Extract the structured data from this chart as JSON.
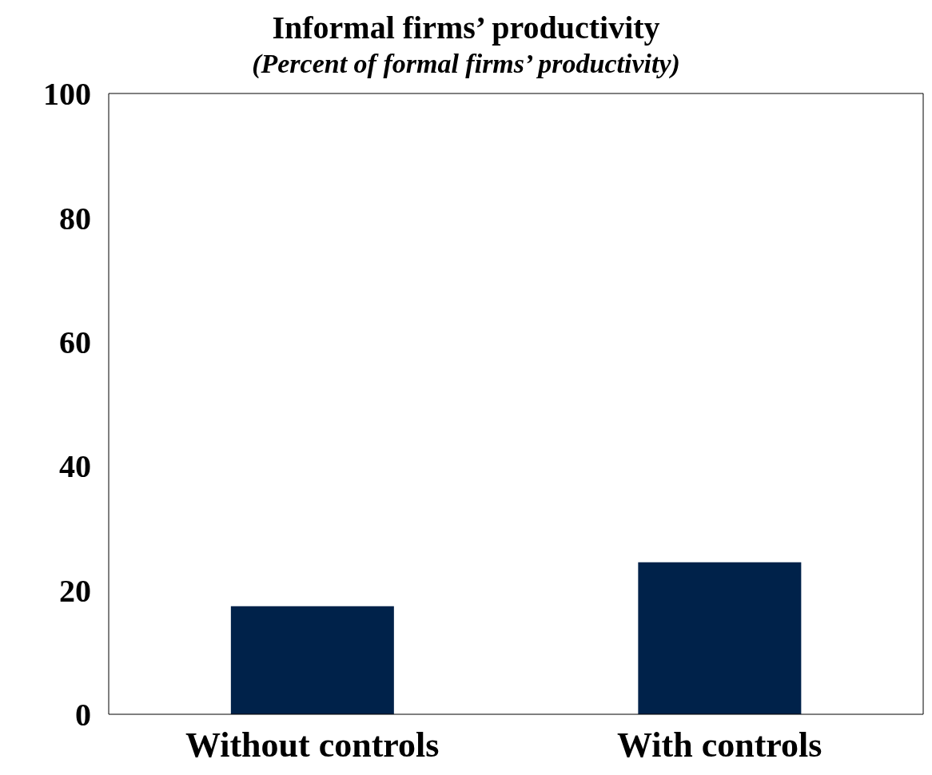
{
  "chart_data": {
    "type": "bar",
    "title": "Informal firms’ productivity",
    "subtitle": "(Percent of formal firms’ productivity)",
    "categories": [
      "Without controls",
      "With controls"
    ],
    "values": [
      17.4,
      24.5
    ],
    "color": "#00224a",
    "ylim": [
      0,
      100
    ],
    "yticks": [
      0,
      20,
      40,
      60,
      80,
      100
    ],
    "grid": false
  }
}
